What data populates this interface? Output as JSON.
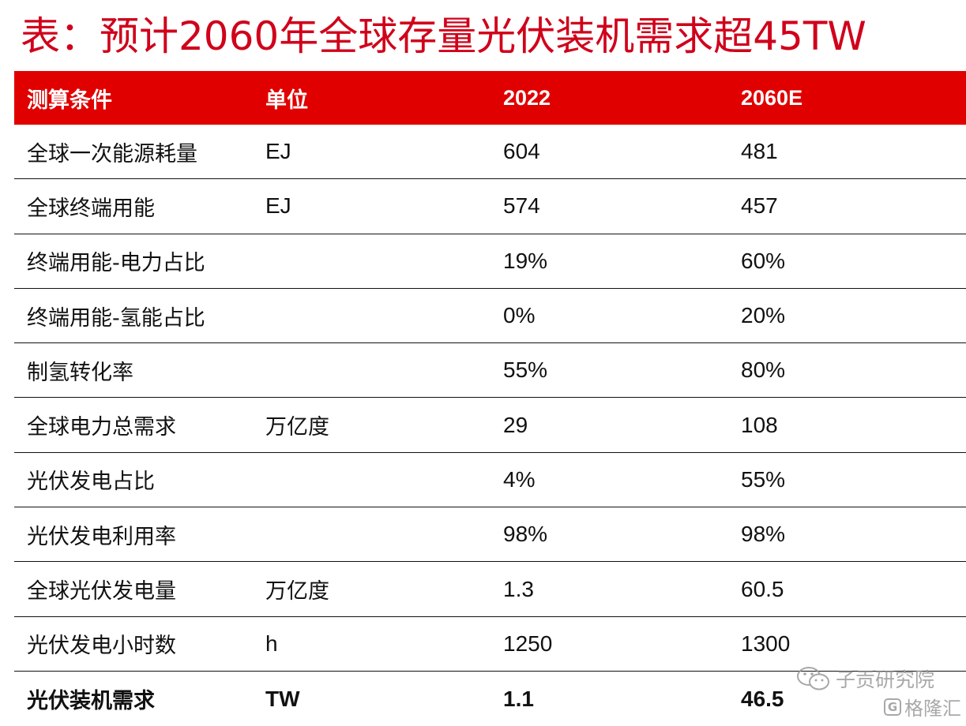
{
  "title": "表：预计2060年全球存量光伏装机需求超45TW",
  "table": {
    "headers": [
      "测算条件",
      "单位",
      "2022",
      "2060E"
    ],
    "rows": [
      {
        "label": "全球一次能源耗量",
        "unit": "EJ",
        "v2022": "604",
        "v2060": "481"
      },
      {
        "label": "全球终端用能",
        "unit": "EJ",
        "v2022": "574",
        "v2060": "457"
      },
      {
        "label": "终端用能-电力占比",
        "unit": "",
        "v2022": "19%",
        "v2060": "60%"
      },
      {
        "label": "终端用能-氢能占比",
        "unit": "",
        "v2022": "0%",
        "v2060": "20%"
      },
      {
        "label": "制氢转化率",
        "unit": "",
        "v2022": "55%",
        "v2060": "80%"
      },
      {
        "label": "全球电力总需求",
        "unit": "万亿度",
        "v2022": "29",
        "v2060": "108"
      },
      {
        "label": "光伏发电占比",
        "unit": "",
        "v2022": "4%",
        "v2060": "55%"
      },
      {
        "label": "光伏发电利用率",
        "unit": "",
        "v2022": "98%",
        "v2060": "98%"
      },
      {
        "label": "全球光伏发电量",
        "unit": "万亿度",
        "v2022": "1.3",
        "v2060": "60.5"
      },
      {
        "label": "光伏发电小时数",
        "unit": "h",
        "v2022": "1250",
        "v2060": "1300"
      },
      {
        "label": "光伏装机需求",
        "unit": "TW",
        "v2022": "1.1",
        "v2060": "46.5"
      }
    ]
  },
  "watermark": {
    "source": "子贡研究院",
    "brand": "格隆汇",
    "brand_icon": "G"
  }
}
